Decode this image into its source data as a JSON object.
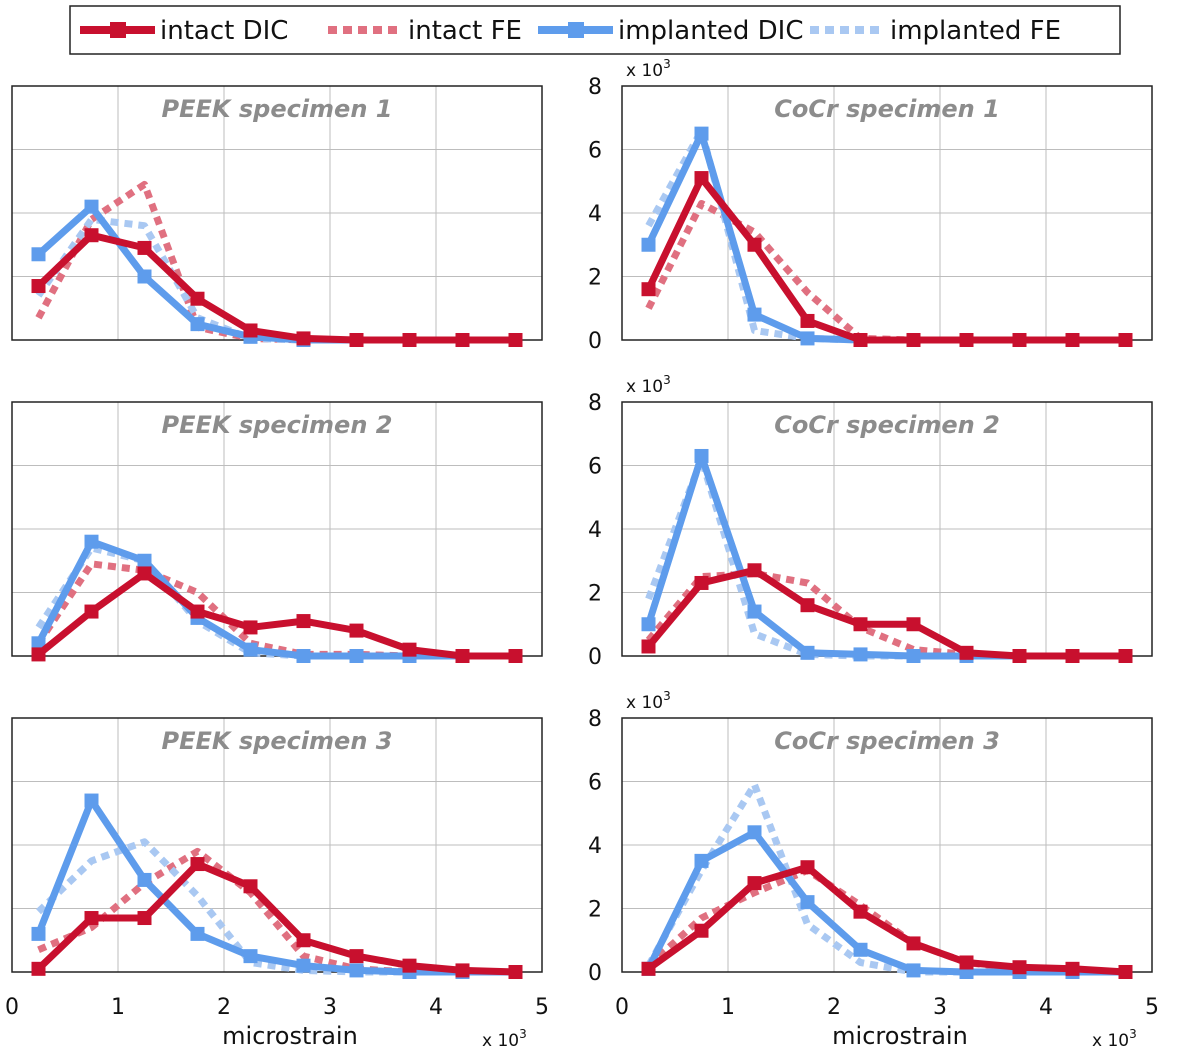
{
  "legend": [
    {
      "label": "intact DIC",
      "color": "#c8102e",
      "dash": false,
      "marker": true
    },
    {
      "label": "intact FE",
      "color": "#e07080",
      "dash": true,
      "marker": false
    },
    {
      "label": "implanted DIC",
      "color": "#5e9cec",
      "dash": false,
      "marker": true
    },
    {
      "label": "implanted FE",
      "color": "#a9c8f2",
      "dash": true,
      "marker": false
    }
  ],
  "xlabel": "microstrain",
  "x_multiplier": "x 10",
  "y_multiplier": "x 10",
  "multiplier_exponent": "3",
  "x_ticks": [
    "0",
    "1",
    "2",
    "3",
    "4",
    "5"
  ],
  "y_ticks": [
    "0",
    "2",
    "4",
    "6",
    "8"
  ],
  "chart_data": [
    {
      "type": "line",
      "title": "PEEK specimen 1",
      "xlim": [
        0,
        5
      ],
      "ylim": [
        0,
        8
      ],
      "x": [
        0.25,
        0.75,
        1.25,
        1.75,
        2.25,
        2.75,
        3.25,
        3.75,
        4.25,
        4.75
      ],
      "series": [
        {
          "name": "intact DIC",
          "values": [
            1.7,
            3.3,
            2.9,
            1.3,
            0.3,
            0.05,
            0.0,
            0.0,
            0.0,
            0.0
          ]
        },
        {
          "name": "intact FE",
          "values": [
            0.7,
            3.8,
            4.9,
            0.4,
            0.05,
            0.0,
            0.0,
            0.0,
            0.0,
            0.0
          ]
        },
        {
          "name": "implanted DIC",
          "values": [
            2.7,
            4.2,
            2.0,
            0.5,
            0.1,
            0.0,
            0.0,
            0.0,
            0.0,
            0.0
          ]
        },
        {
          "name": "implanted FE",
          "values": [
            1.4,
            3.8,
            3.6,
            0.7,
            0.05,
            0.0,
            0.0,
            0.0,
            0.0,
            0.0
          ]
        }
      ]
    },
    {
      "type": "line",
      "title": "CoCr specimen 1",
      "xlim": [
        0,
        5
      ],
      "ylim": [
        0,
        8
      ],
      "x": [
        0.25,
        0.75,
        1.25,
        1.75,
        2.25,
        2.75,
        3.25,
        3.75,
        4.25,
        4.75
      ],
      "series": [
        {
          "name": "intact DIC",
          "values": [
            1.6,
            5.1,
            3.0,
            0.6,
            0.0,
            0.0,
            0.0,
            0.0,
            0.0,
            0.0
          ]
        },
        {
          "name": "intact FE",
          "values": [
            1.0,
            4.3,
            3.4,
            1.5,
            0.05,
            0.0,
            0.0,
            0.0,
            0.0,
            0.0
          ]
        },
        {
          "name": "implanted DIC",
          "values": [
            3.0,
            6.5,
            0.8,
            0.05,
            0.0,
            0.0,
            0.0,
            0.0,
            0.0,
            0.0
          ]
        },
        {
          "name": "implanted FE",
          "values": [
            3.6,
            6.6,
            0.3,
            0.05,
            0.0,
            0.0,
            0.0,
            0.0,
            0.0,
            0.0
          ]
        }
      ]
    },
    {
      "type": "line",
      "title": "PEEK specimen 2",
      "xlim": [
        0,
        5
      ],
      "ylim": [
        0,
        8
      ],
      "x": [
        0.25,
        0.75,
        1.25,
        1.75,
        2.25,
        2.75,
        3.25,
        3.75,
        4.25,
        4.75
      ],
      "series": [
        {
          "name": "intact DIC",
          "values": [
            0.05,
            1.4,
            2.6,
            1.4,
            0.9,
            1.1,
            0.8,
            0.2,
            0.0,
            0.0
          ]
        },
        {
          "name": "intact FE",
          "values": [
            0.4,
            2.9,
            2.7,
            2.0,
            0.4,
            0.05,
            0.05,
            0.0,
            0.0,
            0.0
          ]
        },
        {
          "name": "implanted DIC",
          "values": [
            0.4,
            3.6,
            3.0,
            1.2,
            0.2,
            0.0,
            0.0,
            0.0,
            0.0,
            0.0
          ]
        },
        {
          "name": "implanted FE",
          "values": [
            0.9,
            3.4,
            3.0,
            1.1,
            0.1,
            0.0,
            0.0,
            0.0,
            0.0,
            0.0
          ]
        }
      ]
    },
    {
      "type": "line",
      "title": "CoCr specimen 2",
      "xlim": [
        0,
        5
      ],
      "ylim": [
        0,
        8
      ],
      "x": [
        0.25,
        0.75,
        1.25,
        1.75,
        2.25,
        2.75,
        3.25,
        3.75,
        4.25,
        4.75
      ],
      "series": [
        {
          "name": "intact DIC",
          "values": [
            0.3,
            2.3,
            2.7,
            1.6,
            1.0,
            1.0,
            0.1,
            0.0,
            0.0,
            0.0
          ]
        },
        {
          "name": "intact FE",
          "values": [
            0.5,
            2.5,
            2.6,
            2.3,
            0.9,
            0.2,
            0.05,
            0.0,
            0.0,
            0.0
          ]
        },
        {
          "name": "implanted DIC",
          "values": [
            1.0,
            6.3,
            1.4,
            0.1,
            0.05,
            0.0,
            0.0,
            0.0,
            0.0,
            0.0
          ]
        },
        {
          "name": "implanted FE",
          "values": [
            1.8,
            6.2,
            0.7,
            0.05,
            0.0,
            0.0,
            0.0,
            0.0,
            0.0,
            0.0
          ]
        }
      ]
    },
    {
      "type": "line",
      "title": "PEEK specimen 3",
      "xlim": [
        0,
        5
      ],
      "ylim": [
        0,
        8
      ],
      "x": [
        0.25,
        0.75,
        1.25,
        1.75,
        2.25,
        2.75,
        3.25,
        3.75,
        4.25,
        4.75
      ],
      "series": [
        {
          "name": "intact DIC",
          "values": [
            0.1,
            1.7,
            1.7,
            3.4,
            2.7,
            1.0,
            0.5,
            0.2,
            0.05,
            0.0
          ]
        },
        {
          "name": "intact FE",
          "values": [
            0.7,
            1.4,
            2.8,
            3.8,
            2.5,
            0.5,
            0.1,
            0.0,
            0.0,
            0.0
          ]
        },
        {
          "name": "implanted DIC",
          "values": [
            1.2,
            5.4,
            2.9,
            1.2,
            0.5,
            0.2,
            0.05,
            0.0,
            0.0,
            0.0
          ]
        },
        {
          "name": "implanted FE",
          "values": [
            1.9,
            3.5,
            4.1,
            2.4,
            0.3,
            0.05,
            0.0,
            0.0,
            0.0,
            0.0
          ]
        }
      ]
    },
    {
      "type": "line",
      "title": "CoCr specimen 3",
      "xlim": [
        0,
        5
      ],
      "ylim": [
        0,
        8
      ],
      "x": [
        0.25,
        0.75,
        1.25,
        1.75,
        2.25,
        2.75,
        3.25,
        3.75,
        4.25,
        4.75
      ],
      "series": [
        {
          "name": "intact DIC",
          "values": [
            0.1,
            1.3,
            2.8,
            3.3,
            1.9,
            0.9,
            0.3,
            0.15,
            0.1,
            0.0
          ]
        },
        {
          "name": "intact FE",
          "values": [
            0.2,
            1.7,
            2.5,
            3.2,
            2.1,
            0.9,
            0.3,
            0.1,
            0.05,
            0.0
          ]
        },
        {
          "name": "implanted DIC",
          "values": [
            0.1,
            3.5,
            4.4,
            2.2,
            0.7,
            0.05,
            0.0,
            0.0,
            0.0,
            0.0
          ]
        },
        {
          "name": "implanted FE",
          "values": [
            0.2,
            3.2,
            5.9,
            1.5,
            0.3,
            0.0,
            0.0,
            0.0,
            0.0,
            0.0
          ]
        }
      ]
    }
  ]
}
